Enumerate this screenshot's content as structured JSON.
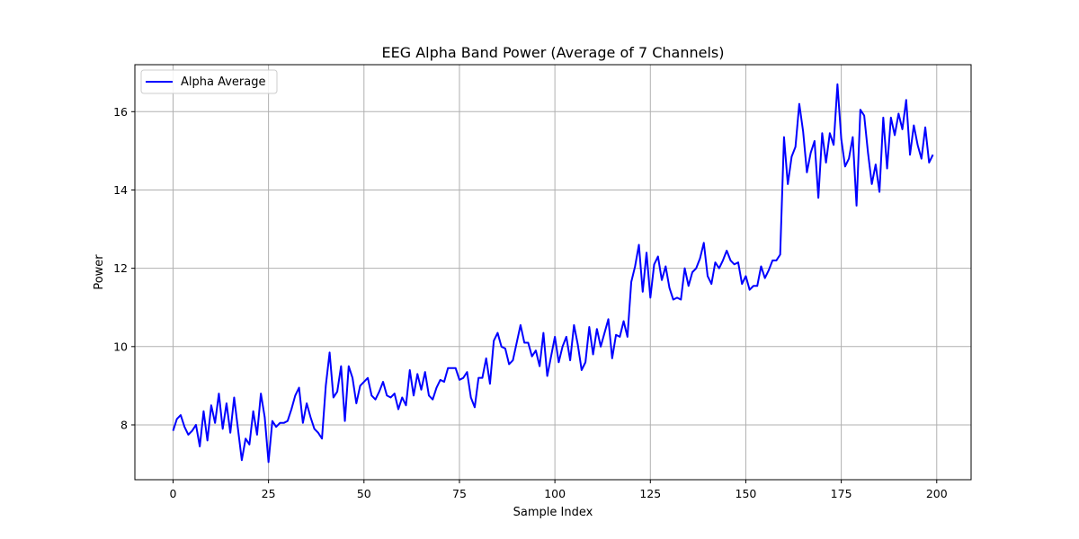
{
  "chart_data": {
    "type": "line",
    "title": "EEG Alpha Band Power (Average of 7 Channels)",
    "xlabel": "Sample Index",
    "ylabel": "Power",
    "xlim": [
      -10,
      209
    ],
    "ylim": [
      6.6,
      17.2
    ],
    "xticks": [
      0,
      25,
      50,
      75,
      100,
      125,
      150,
      175,
      200
    ],
    "yticks": [
      8,
      10,
      12,
      14,
      16
    ],
    "grid": true,
    "legend_position": "top-left",
    "series": [
      {
        "name": "Alpha Average",
        "color": "#0000ff",
        "x_start": 0,
        "x_step": 1,
        "values": [
          7.85,
          8.15,
          8.25,
          7.95,
          7.75,
          7.85,
          8.0,
          7.45,
          8.35,
          7.6,
          8.5,
          8.05,
          8.8,
          7.9,
          8.55,
          7.8,
          8.7,
          7.9,
          7.1,
          7.65,
          7.5,
          8.35,
          7.75,
          8.8,
          8.2,
          7.05,
          8.1,
          7.95,
          8.05,
          8.05,
          8.1,
          8.4,
          8.75,
          8.95,
          8.05,
          8.55,
          8.2,
          7.9,
          7.8,
          7.65,
          9.0,
          9.85,
          8.7,
          8.85,
          9.5,
          8.1,
          9.5,
          9.2,
          8.55,
          9.0,
          9.1,
          9.2,
          8.75,
          8.65,
          8.85,
          9.1,
          8.75,
          8.7,
          8.8,
          8.4,
          8.7,
          8.5,
          9.4,
          8.75,
          9.3,
          8.9,
          9.35,
          8.75,
          8.65,
          8.95,
          9.15,
          9.1,
          9.45,
          9.45,
          9.45,
          9.15,
          9.2,
          9.35,
          8.7,
          8.45,
          9.2,
          9.2,
          9.7,
          9.05,
          10.15,
          10.35,
          10.0,
          9.95,
          9.55,
          9.65,
          10.1,
          10.55,
          10.1,
          10.1,
          9.75,
          9.9,
          9.5,
          10.35,
          9.25,
          9.75,
          10.25,
          9.6,
          10.0,
          10.25,
          9.65,
          10.55,
          10.05,
          9.4,
          9.6,
          10.5,
          9.8,
          10.45,
          10.0,
          10.35,
          10.7,
          9.7,
          10.3,
          10.25,
          10.65,
          10.25,
          11.65,
          12.05,
          12.6,
          11.4,
          12.4,
          11.25,
          12.1,
          12.3,
          11.7,
          12.05,
          11.5,
          11.2,
          11.25,
          11.2,
          12.0,
          11.55,
          11.9,
          12.0,
          12.25,
          12.65,
          11.8,
          11.6,
          12.15,
          12.0,
          12.2,
          12.45,
          12.2,
          12.1,
          12.15,
          11.6,
          11.8,
          11.45,
          11.55,
          11.55,
          12.05,
          11.75,
          11.95,
          12.2,
          12.2,
          12.35,
          15.35,
          14.15,
          14.85,
          15.1,
          16.2,
          15.5,
          14.45,
          14.95,
          15.25,
          13.8,
          15.45,
          14.7,
          15.45,
          15.15,
          16.7,
          15.3,
          14.6,
          14.8,
          15.35,
          13.6,
          16.05,
          15.9,
          14.95,
          14.15,
          14.65,
          13.95,
          15.85,
          14.55,
          15.85,
          15.4,
          15.95,
          15.55,
          16.3,
          14.9,
          15.65,
          15.15,
          14.8,
          15.6,
          14.7,
          14.9
        ]
      }
    ]
  }
}
